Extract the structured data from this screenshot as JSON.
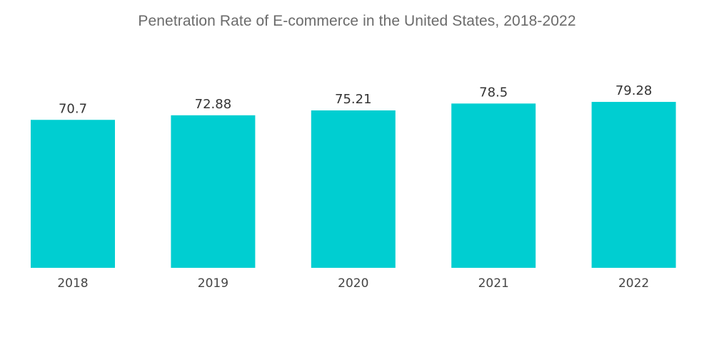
{
  "chart_data": {
    "type": "bar",
    "title": "Penetration Rate of E-commerce in the United States, 2018-2022",
    "categories": [
      "2018",
      "2019",
      "2020",
      "2021",
      "2022"
    ],
    "values": [
      70.7,
      72.88,
      75.21,
      78.5,
      79.28
    ],
    "value_labels": [
      "70.7",
      "72.88",
      "75.21",
      "78.5",
      "79.28"
    ],
    "xlabel": "",
    "ylabel": "",
    "ylim": [
      0,
      81
    ],
    "grid": false,
    "legend": "none",
    "colors": {
      "bar": "#00CED1",
      "title": "#6b6b6b",
      "label": "#333333"
    }
  }
}
